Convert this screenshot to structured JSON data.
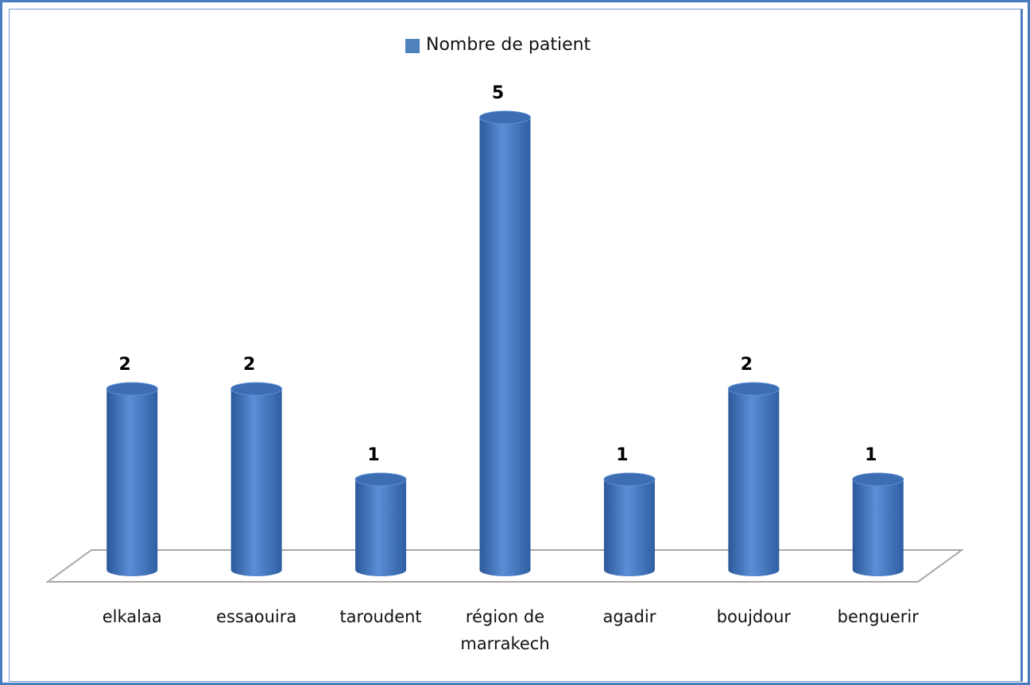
{
  "chart_data": {
    "type": "bar",
    "categories": [
      "elkalaa",
      "essaouira",
      "taroudent",
      "région de marrakech",
      "agadir",
      "boujdour",
      "benguerir"
    ],
    "series": [
      {
        "name": "Nombre de patient",
        "color": "#4f81bd",
        "values": [
          2,
          2,
          1,
          5,
          1,
          2,
          1
        ]
      }
    ],
    "ylim": [
      0,
      5
    ],
    "legend": "top"
  }
}
